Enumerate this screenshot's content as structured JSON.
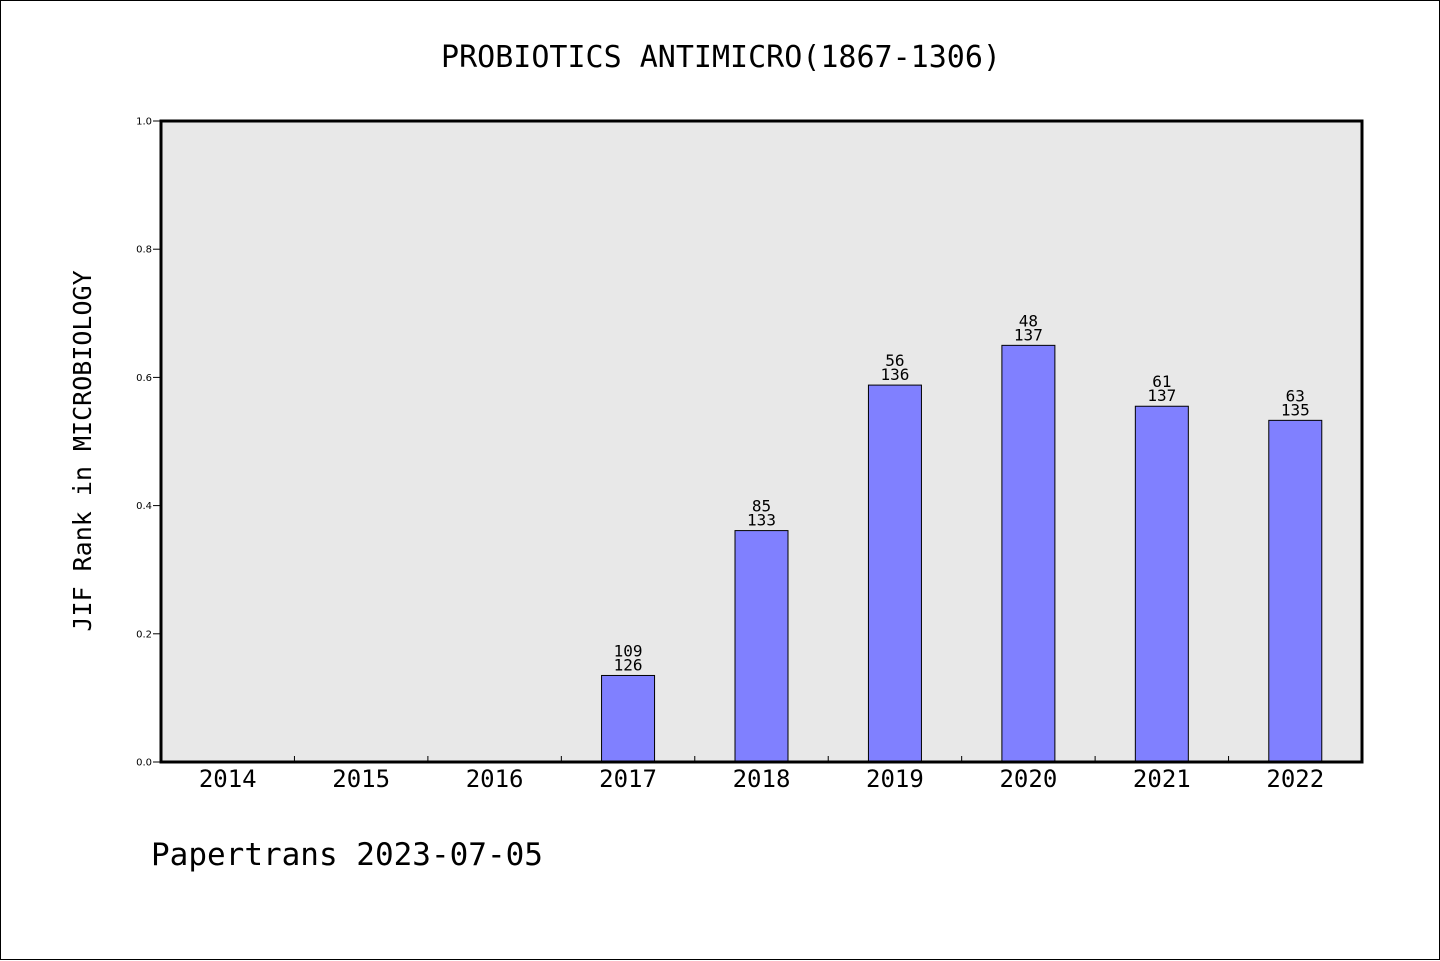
{
  "chart_data": {
    "type": "bar",
    "title": "PROBIOTICS ANTIMICRO(1867-1306)",
    "xlabel": "",
    "ylabel": "JIF Rank in MICROBIOLOGY",
    "ylim": [
      0,
      1.0
    ],
    "yticks": [
      "0.0",
      "0.2",
      "0.4",
      "0.6",
      "0.8",
      "1.0"
    ],
    "categories": [
      "2014",
      "2015",
      "2016",
      "2017",
      "2018",
      "2019",
      "2020",
      "2021",
      "2022"
    ],
    "values": [
      null,
      null,
      null,
      0.135,
      0.361,
      0.588,
      0.65,
      0.555,
      0.533
    ],
    "rank_labels": [
      "",
      "",
      "",
      "109",
      "85",
      "56",
      "48",
      "61",
      "63"
    ],
    "total_labels": [
      "",
      "",
      "",
      "126",
      "133",
      "136",
      "137",
      "137",
      "135"
    ],
    "bar_color": "#8080ff",
    "plot_background": "#e8e8e8",
    "grid": false,
    "legend": "none"
  },
  "footer": "Papertrans 2023-07-05"
}
